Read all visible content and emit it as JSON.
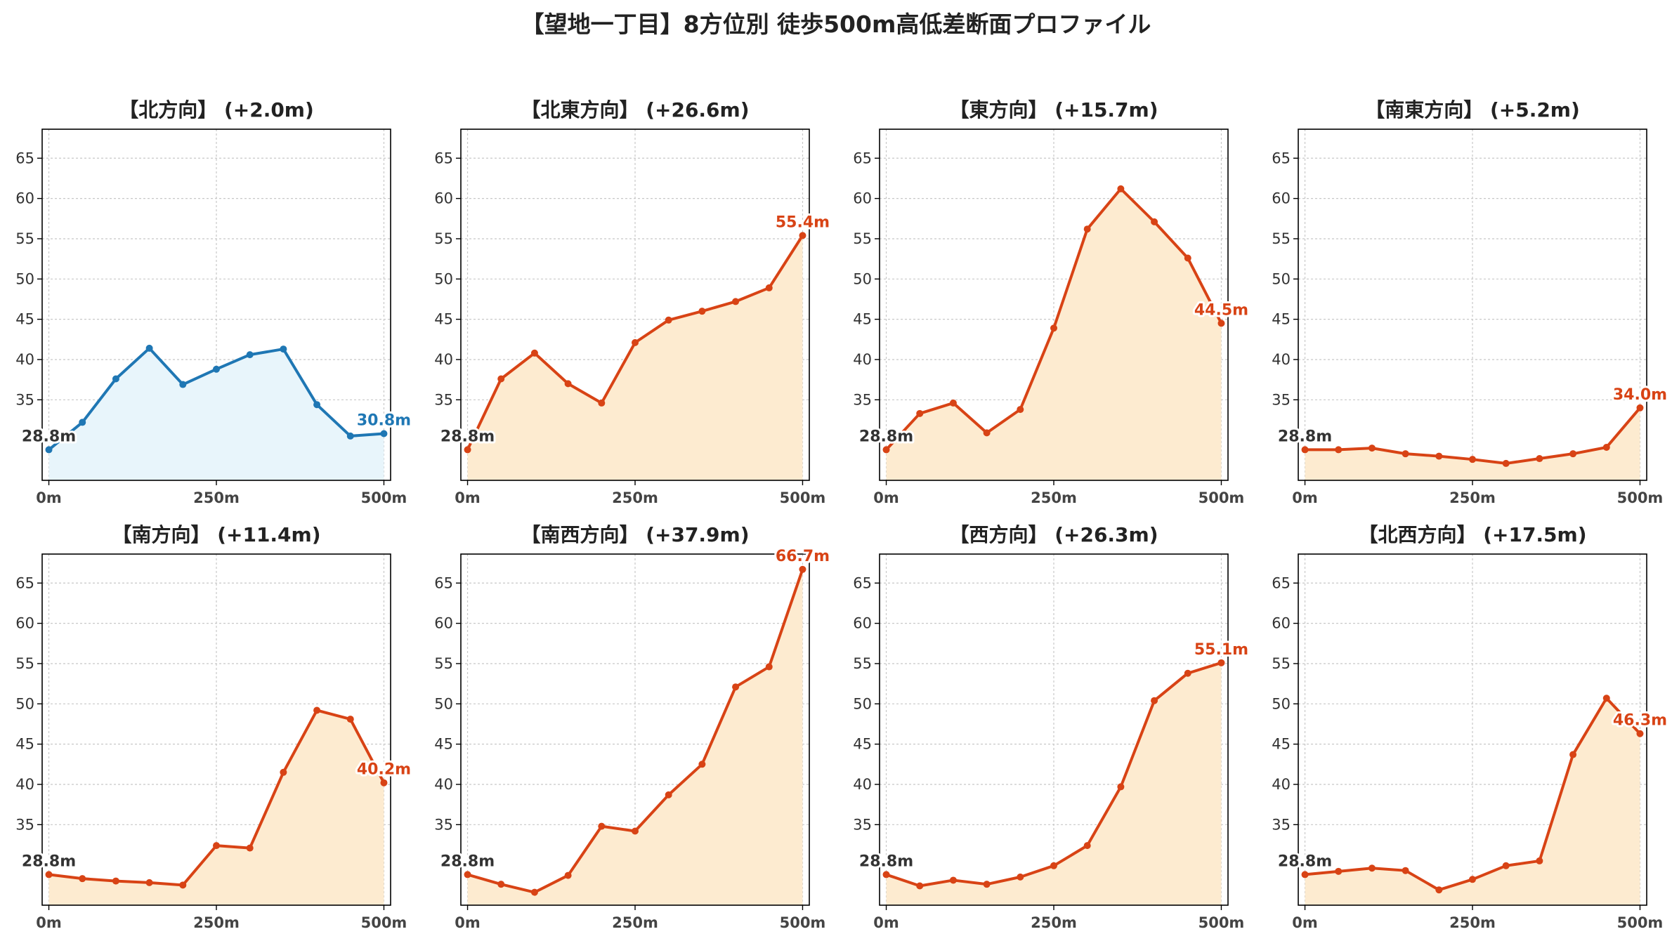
{
  "title": "【望地一丁目】8方位別 徒歩500m高低差断面プロファイル",
  "chart_data": [
    {
      "type": "area",
      "title": "【北方向】 (+2.0m)",
      "x": [
        0,
        50,
        100,
        150,
        200,
        250,
        300,
        350,
        400,
        450,
        500
      ],
      "values": [
        28.8,
        32.2,
        37.6,
        41.4,
        36.9,
        38.8,
        40.6,
        41.3,
        34.4,
        30.5,
        30.8
      ],
      "start_label": "28.8m",
      "end_label": "30.8m",
      "color": "#1f77b4",
      "fill": "#e8f5fb"
    },
    {
      "type": "area",
      "title": "【北東方向】 (+26.6m)",
      "x": [
        0,
        50,
        100,
        150,
        200,
        250,
        300,
        350,
        400,
        450,
        500
      ],
      "values": [
        28.8,
        37.6,
        40.8,
        37.0,
        34.6,
        42.1,
        44.9,
        46.0,
        47.2,
        48.9,
        55.4
      ],
      "start_label": "28.8m",
      "end_label": "55.4m",
      "color": "#d84315",
      "fill": "#fdebd0"
    },
    {
      "type": "area",
      "title": "【東方向】 (+15.7m)",
      "x": [
        0,
        50,
        100,
        150,
        200,
        250,
        300,
        350,
        400,
        450,
        500
      ],
      "values": [
        28.8,
        33.3,
        34.6,
        30.9,
        33.8,
        43.9,
        56.2,
        61.2,
        57.1,
        52.6,
        44.5
      ],
      "start_label": "28.8m",
      "end_label": "44.5m",
      "color": "#d84315",
      "fill": "#fdebd0"
    },
    {
      "type": "area",
      "title": "【南東方向】 (+5.2m)",
      "x": [
        0,
        50,
        100,
        150,
        200,
        250,
        300,
        350,
        400,
        450,
        500
      ],
      "values": [
        28.8,
        28.8,
        29.0,
        28.3,
        28.0,
        27.6,
        27.1,
        27.7,
        28.3,
        29.1,
        34.0
      ],
      "start_label": "28.8m",
      "end_label": "34.0m",
      "color": "#d84315",
      "fill": "#fdebd0"
    },
    {
      "type": "area",
      "title": "【南方向】 (+11.4m)",
      "x": [
        0,
        50,
        100,
        150,
        200,
        250,
        300,
        350,
        400,
        450,
        500
      ],
      "values": [
        28.8,
        28.3,
        28.0,
        27.8,
        27.5,
        32.4,
        32.1,
        41.5,
        49.2,
        48.1,
        40.2
      ],
      "start_label": "28.8m",
      "end_label": "40.2m",
      "color": "#d84315",
      "fill": "#fdebd0"
    },
    {
      "type": "area",
      "title": "【南西方向】 (+37.9m)",
      "x": [
        0,
        50,
        100,
        150,
        200,
        250,
        300,
        350,
        400,
        450,
        500
      ],
      "values": [
        28.8,
        27.6,
        26.6,
        28.7,
        34.8,
        34.2,
        38.7,
        42.5,
        52.1,
        54.6,
        66.7
      ],
      "start_label": "28.8m",
      "end_label": "66.7m",
      "color": "#d84315",
      "fill": "#fdebd0"
    },
    {
      "type": "area",
      "title": "【西方向】 (+26.3m)",
      "x": [
        0,
        50,
        100,
        150,
        200,
        250,
        300,
        350,
        400,
        450,
        500
      ],
      "values": [
        28.8,
        27.4,
        28.1,
        27.6,
        28.5,
        29.9,
        32.4,
        39.7,
        50.4,
        53.8,
        55.1
      ],
      "start_label": "28.8m",
      "end_label": "55.1m",
      "color": "#d84315",
      "fill": "#fdebd0"
    },
    {
      "type": "area",
      "title": "【北西方向】 (+17.5m)",
      "x": [
        0,
        50,
        100,
        150,
        200,
        250,
        300,
        350,
        400,
        450,
        500
      ],
      "values": [
        28.8,
        29.2,
        29.6,
        29.3,
        26.9,
        28.2,
        29.9,
        30.5,
        43.7,
        50.7,
        46.3
      ],
      "start_label": "28.8m",
      "end_label": "46.3m",
      "color": "#d84315",
      "fill": "#fdebd0"
    }
  ],
  "axes": {
    "ylim": [
      25,
      68.6
    ],
    "yticks": [
      35,
      40,
      45,
      50,
      55,
      60,
      65
    ],
    "xlim": [
      -10,
      510
    ],
    "xticks": [
      0,
      250,
      500
    ],
    "xtick_labels": [
      "0m",
      "250m",
      "500m"
    ],
    "grid": true
  }
}
